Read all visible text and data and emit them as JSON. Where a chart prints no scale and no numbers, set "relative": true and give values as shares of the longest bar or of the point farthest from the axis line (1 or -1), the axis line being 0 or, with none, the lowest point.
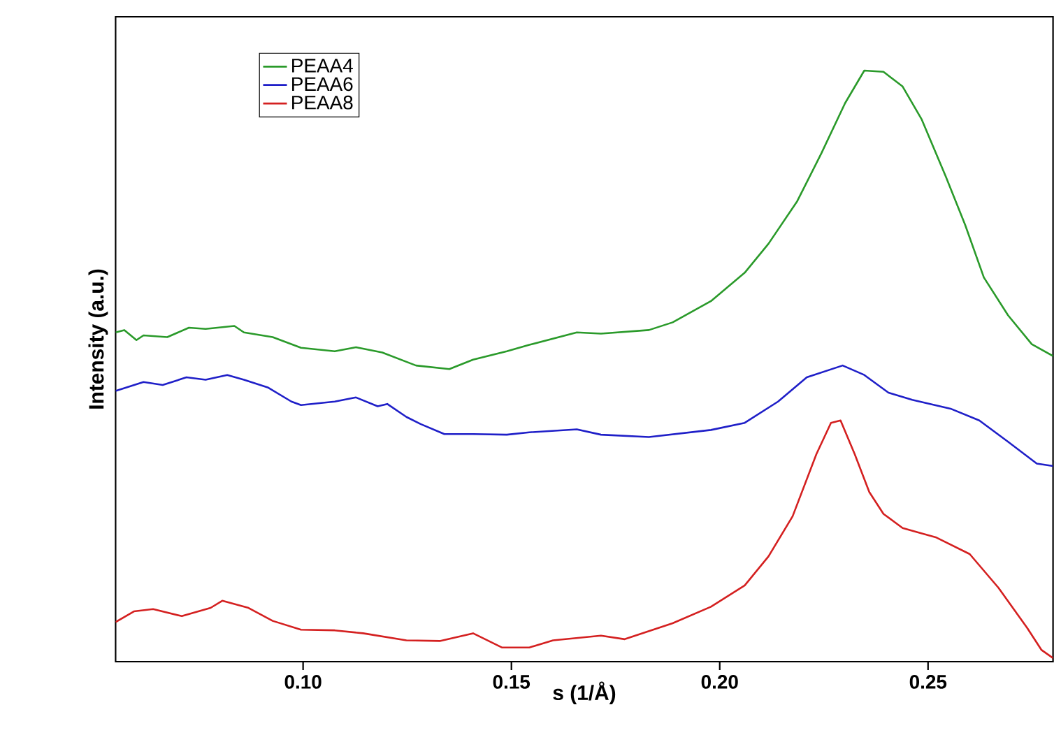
{
  "chart_data": {
    "type": "line",
    "relative": true,
    "xlabel": "s (1/Å)",
    "ylabel": "Intensity (a.u.)",
    "xlim": [
      0.055,
      0.28
    ],
    "xticks": [
      {
        "value": 0.1,
        "label": "0.10"
      },
      {
        "value": 0.15,
        "label": "0.15"
      },
      {
        "value": 0.2,
        "label": "0.20"
      },
      {
        "value": 0.25,
        "label": "0.25"
      }
    ],
    "legend": "top left",
    "marker": "none",
    "line_style": "solid",
    "series": [
      {
        "name": "PEAA4",
        "color": "#2a9a2a",
        "x": [
          0.055,
          0.0571,
          0.06,
          0.0617,
          0.0674,
          0.0726,
          0.0766,
          0.0835,
          0.0858,
          0.0927,
          0.0995,
          0.1076,
          0.1127,
          0.119,
          0.1271,
          0.1351,
          0.1408,
          0.1489,
          0.1543,
          0.1657,
          0.1715,
          0.183,
          0.1887,
          0.1979,
          0.206,
          0.2117,
          0.2186,
          0.2244,
          0.2301,
          0.2347,
          0.2393,
          0.2439,
          0.2485,
          0.2543,
          0.2589,
          0.2634,
          0.2692,
          0.2749,
          0.28
        ],
        "values": [
          0.557,
          0.561,
          0.544,
          0.552,
          0.549,
          0.565,
          0.563,
          0.568,
          0.557,
          0.549,
          0.531,
          0.525,
          0.532,
          0.523,
          0.501,
          0.495,
          0.511,
          0.525,
          0.536,
          0.557,
          0.555,
          0.561,
          0.574,
          0.61,
          0.658,
          0.707,
          0.779,
          0.86,
          0.945,
          1.0,
          0.998,
          0.973,
          0.917,
          0.82,
          0.739,
          0.65,
          0.586,
          0.537,
          0.517
        ]
      },
      {
        "name": "PEAA6",
        "color": "#1f1fc8",
        "x": [
          0.055,
          0.0617,
          0.0663,
          0.072,
          0.0766,
          0.0818,
          0.0858,
          0.0915,
          0.0972,
          0.0995,
          0.1076,
          0.1127,
          0.1179,
          0.1202,
          0.1248,
          0.1282,
          0.1339,
          0.1408,
          0.1489,
          0.1543,
          0.1657,
          0.1715,
          0.183,
          0.1979,
          0.206,
          0.214,
          0.2209,
          0.2295,
          0.2347,
          0.2405,
          0.2462,
          0.2554,
          0.2623,
          0.2692,
          0.2761,
          0.28
        ],
        "values": [
          0.458,
          0.473,
          0.468,
          0.481,
          0.477,
          0.485,
          0.477,
          0.464,
          0.44,
          0.434,
          0.44,
          0.447,
          0.432,
          0.436,
          0.414,
          0.402,
          0.385,
          0.385,
          0.384,
          0.388,
          0.393,
          0.384,
          0.38,
          0.392,
          0.404,
          0.44,
          0.481,
          0.501,
          0.485,
          0.455,
          0.443,
          0.428,
          0.408,
          0.372,
          0.335,
          0.331
        ]
      },
      {
        "name": "PEAA8",
        "color": "#d42020",
        "x": [
          0.055,
          0.0594,
          0.064,
          0.0709,
          0.0778,
          0.0806,
          0.0869,
          0.0927,
          0.0995,
          0.1076,
          0.1144,
          0.1248,
          0.1328,
          0.1408,
          0.1477,
          0.1543,
          0.16,
          0.1715,
          0.1772,
          0.1887,
          0.1979,
          0.206,
          0.2117,
          0.2175,
          0.2232,
          0.2267,
          0.229,
          0.2324,
          0.2359,
          0.2393,
          0.2439,
          0.252,
          0.26,
          0.2669,
          0.2738,
          0.2772,
          0.28
        ],
        "values": [
          0.067,
          0.085,
          0.089,
          0.077,
          0.091,
          0.103,
          0.091,
          0.069,
          0.054,
          0.053,
          0.048,
          0.036,
          0.035,
          0.048,
          0.024,
          0.024,
          0.036,
          0.044,
          0.038,
          0.065,
          0.093,
          0.129,
          0.178,
          0.246,
          0.351,
          0.404,
          0.408,
          0.351,
          0.287,
          0.25,
          0.226,
          0.21,
          0.182,
          0.125,
          0.057,
          0.02,
          0.006
        ]
      }
    ]
  }
}
